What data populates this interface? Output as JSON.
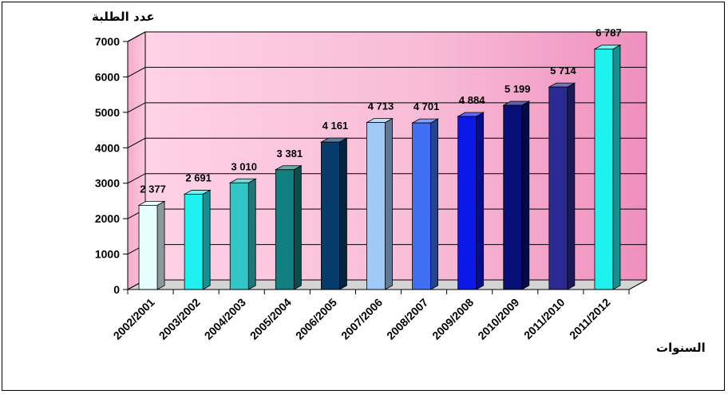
{
  "chart_data": {
    "type": "bar",
    "ylabel": "عدد الطلبة",
    "xlabel": "السنوات",
    "ylim": [
      0,
      7000
    ],
    "yticks": [
      "0",
      "1000",
      "2000",
      "3000",
      "4000",
      "5000",
      "6000",
      "7000"
    ],
    "grid": true,
    "categories": [
      "2002/2001",
      "2003/2002",
      "2004/2003",
      "2005/2004",
      "2006/2005",
      "2007/2006",
      "2008/2007",
      "2009/2008",
      "2010/2009",
      "2011/2010",
      "2011/2012"
    ],
    "values": [
      2377,
      2691,
      3010,
      3381,
      4161,
      4713,
      4701,
      4884,
      5199,
      5714,
      6787
    ],
    "value_labels": [
      "2 377",
      "2 691",
      "3 010",
      "3 381",
      "4 161",
      "4 713",
      "4 701",
      "4 884",
      "5 199",
      "5 714",
      "6 787"
    ],
    "colors": [
      "#e6ffff",
      "#1ff0f0",
      "#33c6c6",
      "#128080",
      "#073b6b",
      "#9fcaf7",
      "#3f6ff2",
      "#0a18e8",
      "#070f78",
      "#2a2a92",
      "#1ff2ee"
    ]
  }
}
